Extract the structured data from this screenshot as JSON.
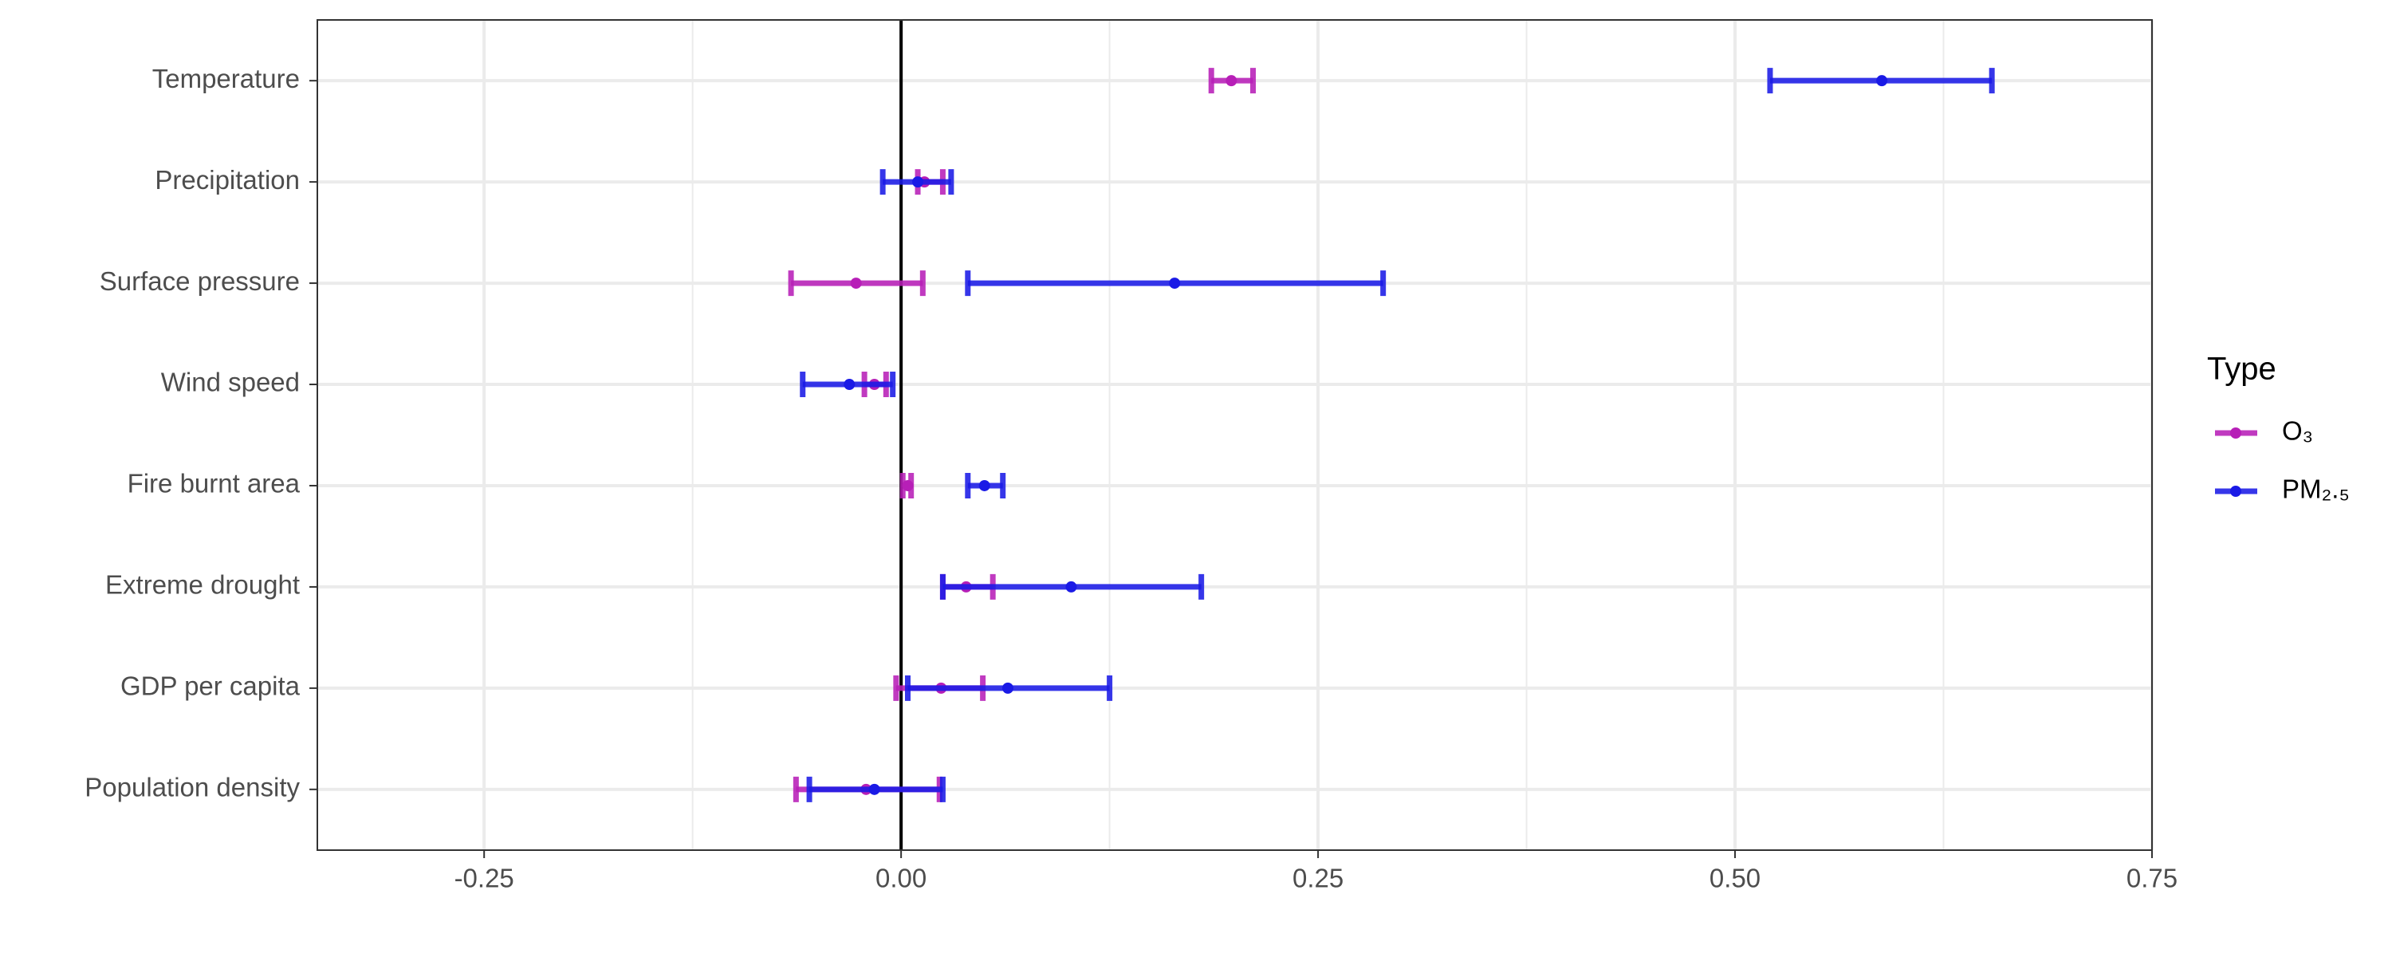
{
  "chart_data": {
    "type": "errorbar",
    "categories": [
      "Temperature",
      "Precipitation",
      "Surface pressure",
      "Wind speed",
      "Fire burnt area",
      "Extreme drought",
      "GDP per capita",
      "Population density"
    ],
    "series": [
      {
        "name": "O₃",
        "color": "#b71fb7",
        "values": [
          0.198,
          0.014,
          -0.027,
          -0.016,
          0.004,
          0.039,
          0.024,
          -0.021
        ],
        "lower": [
          0.186,
          0.01,
          -0.066,
          -0.022,
          0.001,
          0.025,
          -0.003,
          -0.063
        ],
        "upper": [
          0.211,
          0.025,
          0.013,
          -0.009,
          0.006,
          0.055,
          0.049,
          0.023
        ]
      },
      {
        "name": "PM₂.₅",
        "color": "#1a1ae6",
        "values": [
          0.588,
          0.01,
          0.164,
          -0.031,
          0.05,
          0.102,
          0.064,
          -0.016
        ],
        "lower": [
          0.521,
          -0.011,
          0.04,
          -0.059,
          0.04,
          0.025,
          0.004,
          -0.055
        ],
        "upper": [
          0.654,
          0.03,
          0.289,
          -0.005,
          0.061,
          0.18,
          0.125,
          0.025
        ]
      }
    ],
    "xlim": [
      -0.35,
      0.75
    ],
    "xticks": [
      -0.25,
      {
        "value": 0,
        "label": "0.00"
      },
      0.25,
      {
        "value": 0.5,
        "label": "0.50"
      },
      0.75
    ],
    "reference_line": 0,
    "grid": true,
    "legend_title": "Type",
    "legend_position": "right"
  }
}
